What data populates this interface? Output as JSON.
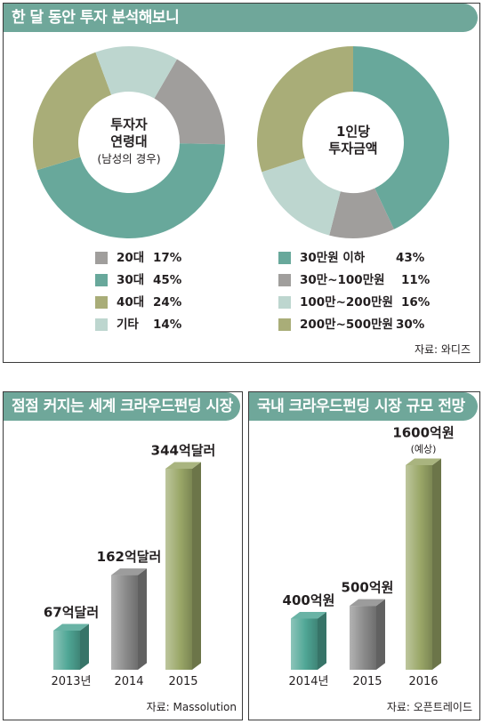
{
  "colors": {
    "header": "#6fa79a",
    "teal": "#68a89b",
    "gray": "#a09e9c",
    "olive": "#a9ad78",
    "light": "#bdd6cf",
    "bar_teal": "#4fa695",
    "bar_gray": "#8a8a8a",
    "bar_olive": "#9aa768"
  },
  "top": {
    "title": "한 달 동안 투자 분석해보니",
    "source": "자료: 와디즈"
  },
  "left": {
    "title": "점점 커지는 세계 크라우드펀딩 시장",
    "source": "자료: Massolution"
  },
  "right": {
    "title": "국내 크라우드펀딩 시장 규모 전망",
    "source": "자료: 오픈트레이드"
  },
  "chart_data": [
    {
      "type": "pie",
      "center_label": [
        "투자자",
        "연령대"
      ],
      "center_sub": "(남성의 경우)",
      "categories": [
        "20대",
        "30대",
        "40대",
        "기타"
      ],
      "values": [
        17,
        45,
        24,
        14
      ],
      "value_labels": [
        "17%",
        "45%",
        "24%",
        "14%"
      ],
      "colors": [
        "#a09e9c",
        "#68a89b",
        "#a9ad78",
        "#bdd6cf"
      ]
    },
    {
      "type": "pie",
      "center_label": [
        "1인당",
        "투자금액"
      ],
      "categories": [
        "30만원 이하",
        "30만~100만원",
        "100만~200만원",
        "200만~500만원"
      ],
      "values": [
        43,
        11,
        16,
        30
      ],
      "value_labels": [
        "43%",
        "11%",
        "16%",
        "30%"
      ],
      "colors": [
        "#68a89b",
        "#a09e9c",
        "#bdd6cf",
        "#a9ad78"
      ]
    },
    {
      "type": "bar",
      "categories": [
        "2013년",
        "2014",
        "2015"
      ],
      "values": [
        67,
        162,
        344
      ],
      "value_labels": [
        "67억달러",
        "162억달러",
        "344억달러"
      ],
      "unit": "억달러",
      "colors": [
        "#4fa695",
        "#8a8a8a",
        "#9aa768"
      ]
    },
    {
      "type": "bar",
      "categories": [
        "2014년",
        "2015",
        "2016"
      ],
      "values": [
        400,
        500,
        1600
      ],
      "value_labels": [
        "400억원",
        "500억원",
        "1600억원"
      ],
      "value_notes": [
        "",
        "",
        "(예상)"
      ],
      "unit": "억원",
      "colors": [
        "#4fa695",
        "#8a8a8a",
        "#9aa768"
      ]
    }
  ]
}
